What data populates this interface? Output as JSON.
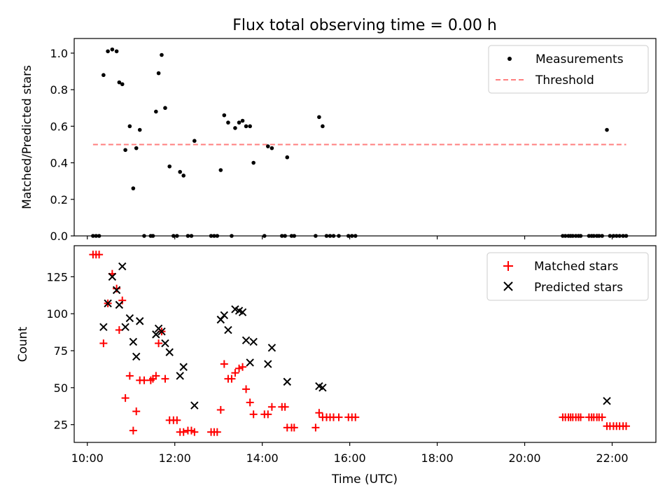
{
  "title": "Flux total observing time = 0.00 h",
  "xlabel": "Time (UTC)",
  "x_ticks": [
    "10:00",
    "12:00",
    "14:00",
    "16:00",
    "18:00",
    "20:00",
    "22:00"
  ],
  "colors": {
    "measurements": "#000000",
    "threshold": "#ff7f7f",
    "matched": "#ff0000",
    "predicted": "#000000"
  },
  "chart_data": [
    {
      "type": "scatter",
      "ylabel": "Matched/Predicted stars",
      "xlim": [
        9.7,
        23.0
      ],
      "ylim": [
        0.0,
        1.08
      ],
      "y_ticks": [
        "0.0",
        "0.2",
        "0.4",
        "0.6",
        "0.8",
        "1.0"
      ],
      "legend": [
        "Measurements",
        "Threshold"
      ],
      "threshold": {
        "value": 0.5,
        "x_range": [
          10.13,
          22.32
        ]
      },
      "series": [
        {
          "name": "Measurements",
          "marker": "dot",
          "points": [
            [
              10.13,
              0.0
            ],
            [
              10.2,
              0.0
            ],
            [
              10.27,
              0.0
            ],
            [
              10.37,
              0.88
            ],
            [
              10.47,
              1.01
            ],
            [
              10.57,
              1.02
            ],
            [
              10.67,
              1.01
            ],
            [
              10.73,
              0.84
            ],
            [
              10.8,
              0.83
            ],
            [
              10.87,
              0.47
            ],
            [
              10.97,
              0.6
            ],
            [
              11.05,
              0.26
            ],
            [
              11.12,
              0.48
            ],
            [
              11.2,
              0.58
            ],
            [
              11.3,
              0.0
            ],
            [
              11.45,
              0.0
            ],
            [
              11.5,
              0.0
            ],
            [
              11.57,
              0.68
            ],
            [
              11.63,
              0.89
            ],
            [
              11.7,
              0.99
            ],
            [
              11.78,
              0.7
            ],
            [
              11.88,
              0.38
            ],
            [
              11.97,
              0.0
            ],
            [
              12.05,
              0.0
            ],
            [
              12.12,
              0.35
            ],
            [
              12.2,
              0.33
            ],
            [
              12.3,
              0.0
            ],
            [
              12.38,
              0.0
            ],
            [
              12.45,
              0.52
            ],
            [
              12.83,
              0.0
            ],
            [
              12.9,
              0.0
            ],
            [
              12.97,
              0.0
            ],
            [
              13.05,
              0.36
            ],
            [
              13.13,
              0.66
            ],
            [
              13.22,
              0.62
            ],
            [
              13.3,
              0.0
            ],
            [
              13.38,
              0.59
            ],
            [
              13.47,
              0.62
            ],
            [
              13.55,
              0.63
            ],
            [
              13.63,
              0.6
            ],
            [
              13.72,
              0.6
            ],
            [
              13.8,
              0.4
            ],
            [
              14.05,
              0.0
            ],
            [
              14.13,
              0.49
            ],
            [
              14.22,
              0.48
            ],
            [
              14.45,
              0.0
            ],
            [
              14.52,
              0.0
            ],
            [
              14.57,
              0.43
            ],
            [
              14.67,
              0.0
            ],
            [
              14.73,
              0.0
            ],
            [
              15.22,
              0.0
            ],
            [
              15.3,
              0.65
            ],
            [
              15.38,
              0.6
            ],
            [
              15.47,
              0.0
            ],
            [
              15.55,
              0.0
            ],
            [
              15.63,
              0.0
            ],
            [
              15.75,
              0.0
            ],
            [
              15.97,
              0.0
            ],
            [
              16.05,
              0.0
            ],
            [
              16.13,
              0.0
            ],
            [
              20.87,
              0.0
            ],
            [
              20.93,
              0.0
            ],
            [
              21.0,
              0.0
            ],
            [
              21.05,
              0.0
            ],
            [
              21.1,
              0.0
            ],
            [
              21.17,
              0.0
            ],
            [
              21.23,
              0.0
            ],
            [
              21.28,
              0.0
            ],
            [
              21.47,
              0.0
            ],
            [
              21.53,
              0.0
            ],
            [
              21.58,
              0.0
            ],
            [
              21.65,
              0.0
            ],
            [
              21.7,
              0.0
            ],
            [
              21.77,
              0.0
            ],
            [
              21.88,
              0.58
            ],
            [
              21.95,
              0.0
            ],
            [
              22.03,
              0.0
            ],
            [
              22.1,
              0.0
            ],
            [
              22.17,
              0.0
            ],
            [
              22.25,
              0.0
            ],
            [
              22.32,
              0.0
            ]
          ]
        }
      ]
    },
    {
      "type": "scatter",
      "ylabel": "Count",
      "xlim": [
        9.7,
        23.0
      ],
      "ylim": [
        13,
        146
      ],
      "y_ticks": [
        "25",
        "50",
        "75",
        "100",
        "125"
      ],
      "legend": [
        "Matched stars",
        "Predicted stars"
      ],
      "series": [
        {
          "name": "Matched stars",
          "marker": "plus",
          "points": [
            [
              10.13,
              140
            ],
            [
              10.2,
              140
            ],
            [
              10.27,
              140
            ],
            [
              10.37,
              80
            ],
            [
              10.47,
              107
            ],
            [
              10.57,
              127
            ],
            [
              10.67,
              117
            ],
            [
              10.73,
              89
            ],
            [
              10.8,
              109
            ],
            [
              10.87,
              43
            ],
            [
              10.97,
              58
            ],
            [
              11.05,
              21
            ],
            [
              11.12,
              34
            ],
            [
              11.2,
              55
            ],
            [
              11.3,
              55
            ],
            [
              11.45,
              55
            ],
            [
              11.5,
              56
            ],
            [
              11.57,
              58
            ],
            [
              11.63,
              80
            ],
            [
              11.7,
              88
            ],
            [
              11.78,
              56
            ],
            [
              11.88,
              28
            ],
            [
              11.97,
              28
            ],
            [
              12.05,
              28
            ],
            [
              12.12,
              20
            ],
            [
              12.2,
              20
            ],
            [
              12.3,
              21
            ],
            [
              12.38,
              21
            ],
            [
              12.45,
              20
            ],
            [
              12.83,
              20
            ],
            [
              12.9,
              20
            ],
            [
              12.97,
              20
            ],
            [
              13.05,
              35
            ],
            [
              13.13,
              66
            ],
            [
              13.22,
              56
            ],
            [
              13.3,
              56
            ],
            [
              13.38,
              60
            ],
            [
              13.47,
              63
            ],
            [
              13.55,
              64
            ],
            [
              13.63,
              49
            ],
            [
              13.72,
              40
            ],
            [
              13.8,
              32
            ],
            [
              14.05,
              32
            ],
            [
              14.13,
              32
            ],
            [
              14.22,
              37
            ],
            [
              14.45,
              37
            ],
            [
              14.52,
              37
            ],
            [
              14.57,
              23
            ],
            [
              14.67,
              23
            ],
            [
              14.73,
              23
            ],
            [
              15.22,
              23
            ],
            [
              15.3,
              33
            ],
            [
              15.38,
              30
            ],
            [
              15.47,
              30
            ],
            [
              15.55,
              30
            ],
            [
              15.63,
              30
            ],
            [
              15.75,
              30
            ],
            [
              15.97,
              30
            ],
            [
              16.05,
              30
            ],
            [
              16.13,
              30
            ],
            [
              20.87,
              30
            ],
            [
              20.93,
              30
            ],
            [
              21.0,
              30
            ],
            [
              21.05,
              30
            ],
            [
              21.1,
              30
            ],
            [
              21.17,
              30
            ],
            [
              21.23,
              30
            ],
            [
              21.28,
              30
            ],
            [
              21.47,
              30
            ],
            [
              21.53,
              30
            ],
            [
              21.58,
              30
            ],
            [
              21.65,
              30
            ],
            [
              21.7,
              30
            ],
            [
              21.77,
              30
            ],
            [
              21.88,
              24
            ],
            [
              21.95,
              24
            ],
            [
              22.03,
              24
            ],
            [
              22.1,
              24
            ],
            [
              22.17,
              24
            ],
            [
              22.25,
              24
            ],
            [
              22.32,
              24
            ]
          ]
        },
        {
          "name": "Predicted stars",
          "marker": "x",
          "points": [
            [
              10.37,
              91
            ],
            [
              10.47,
              107
            ],
            [
              10.57,
              125
            ],
            [
              10.67,
              116
            ],
            [
              10.73,
              106
            ],
            [
              10.8,
              132
            ],
            [
              10.87,
              91
            ],
            [
              10.97,
              97
            ],
            [
              11.05,
              81
            ],
            [
              11.12,
              71
            ],
            [
              11.2,
              95
            ],
            [
              11.57,
              86
            ],
            [
              11.63,
              90
            ],
            [
              11.7,
              88
            ],
            [
              11.78,
              80
            ],
            [
              11.88,
              74
            ],
            [
              12.12,
              58
            ],
            [
              12.2,
              64
            ],
            [
              12.45,
              38
            ],
            [
              13.05,
              96
            ],
            [
              13.13,
              99
            ],
            [
              13.22,
              89
            ],
            [
              13.38,
              103
            ],
            [
              13.47,
              102
            ],
            [
              13.55,
              101
            ],
            [
              13.63,
              82
            ],
            [
              13.72,
              67
            ],
            [
              13.8,
              81
            ],
            [
              14.13,
              66
            ],
            [
              14.22,
              77
            ],
            [
              14.57,
              54
            ],
            [
              15.3,
              51
            ],
            [
              15.38,
              50
            ],
            [
              21.88,
              41
            ]
          ]
        }
      ]
    }
  ]
}
